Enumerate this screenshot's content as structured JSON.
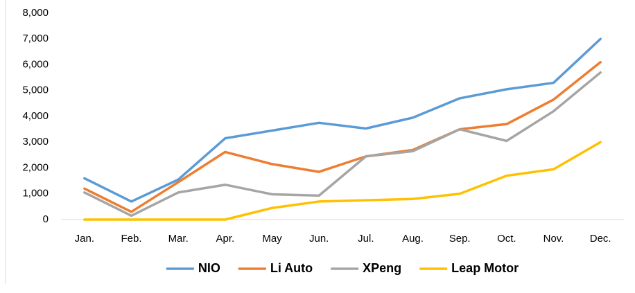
{
  "chart_data": {
    "type": "line",
    "categories": [
      "Jan.",
      "Feb.",
      "Mar.",
      "Apr.",
      "May",
      "Jun.",
      "Jul.",
      "Aug.",
      "Sep.",
      "Oct.",
      "Nov.",
      "Dec."
    ],
    "series": [
      {
        "name": "NIO",
        "color": "#5b9bd5",
        "values": [
          1600,
          700,
          1550,
          3150,
          3450,
          3750,
          3530,
          3950,
          4700,
          5050,
          5300,
          7000
        ]
      },
      {
        "name": "Li Auto",
        "color": "#ed7d31",
        "values": [
          1200,
          300,
          1450,
          2620,
          2150,
          1850,
          2450,
          2700,
          3500,
          3700,
          4650,
          6100
        ]
      },
      {
        "name": "XPeng",
        "color": "#a5a5a5",
        "values": [
          1050,
          150,
          1050,
          1350,
          980,
          930,
          2450,
          2650,
          3500,
          3050,
          4200,
          5700
        ]
      },
      {
        "name": "Leap Motor",
        "color": "#ffc000",
        "values": [
          0,
          0,
          0,
          0,
          450,
          700,
          750,
          800,
          1000,
          1700,
          1950,
          3000
        ]
      }
    ],
    "ylim": [
      0,
      8000
    ],
    "yticks": [
      0,
      {
        "value": 1000,
        "label": "1,000"
      },
      {
        "value": 2000,
        "label": "2,000"
      },
      {
        "value": 3000,
        "label": "3,000"
      },
      {
        "value": 4000,
        "label": "4,000"
      },
      {
        "value": 5000,
        "label": "5,000"
      },
      {
        "value": 6000,
        "label": "6,000"
      },
      {
        "value": 7000,
        "label": "7,000"
      },
      {
        "value": 8000,
        "label": "8,000"
      }
    ],
    "grid": false,
    "legend": "bottom"
  }
}
